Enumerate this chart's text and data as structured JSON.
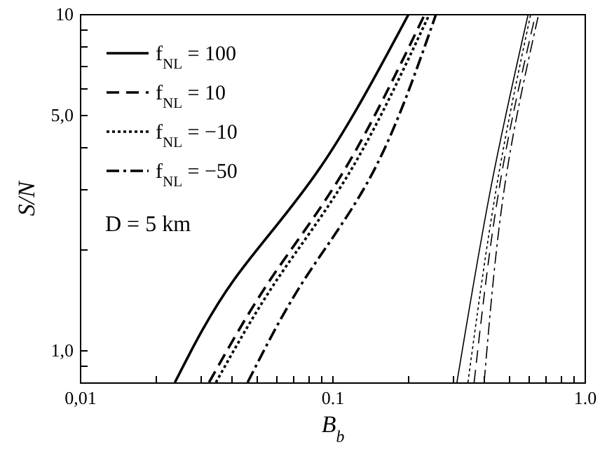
{
  "chart_data": {
    "type": "line",
    "xlabel": "B$_{b}$",
    "ylabel": "S/N",
    "log": "xy",
    "grid": false,
    "legend": "top left",
    "xlim": [
      0.01,
      1
    ],
    "ylim": [
      0.8,
      10
    ],
    "xticks": [
      {
        "value": 0.01,
        "label": "0,01"
      },
      {
        "value": 0.02,
        "label": null
      },
      {
        "value": 0.03,
        "label": null
      },
      {
        "value": 0.04,
        "label": null
      },
      {
        "value": 0.05,
        "label": null
      },
      {
        "value": 0.06,
        "label": null
      },
      {
        "value": 0.07,
        "label": null
      },
      {
        "value": 0.08,
        "label": null
      },
      {
        "value": 0.09,
        "label": null
      },
      0.1,
      {
        "value": 0.2,
        "label": null
      },
      {
        "value": 0.3,
        "label": null
      },
      {
        "value": 0.4,
        "label": null
      },
      {
        "value": 0.5,
        "label": null
      },
      {
        "value": 0.6,
        "label": null
      },
      {
        "value": 0.7,
        "label": null
      },
      {
        "value": 0.8,
        "label": null
      },
      {
        "value": 0.9,
        "label": null
      },
      {
        "value": 1,
        "label": "1.0"
      }
    ],
    "yticks": [
      {
        "value": 0.9,
        "label": null
      },
      {
        "value": 1,
        "label": "1,0"
      },
      {
        "value": 2,
        "label": null
      },
      {
        "value": 3,
        "label": null
      },
      {
        "value": 4,
        "label": null
      },
      {
        "value": 5,
        "label": "5,0"
      },
      {
        "value": 6,
        "label": null
      },
      {
        "value": 7,
        "label": null
      },
      {
        "value": 8,
        "label": null
      },
      {
        "value": 9,
        "label": null
      },
      10
    ],
    "annotations": [
      "D = 5  km"
    ],
    "series": [
      {
        "name": "f$_{NL}$ = 100",
        "color": "#000000",
        "line_style": "solid",
        "x": [
          0.0238,
          0.0409,
          0.0894,
          0.201
        ],
        "values": [
          0.8,
          1.62,
          3.48,
          10
        ]
      },
      {
        "name": "f$_{NL}$ = 10",
        "color": "#000000",
        "line_style": "dashed",
        "x": [
          0.0325,
          0.0569,
          0.113,
          0.233
        ],
        "values": [
          0.8,
          1.62,
          3.48,
          10
        ]
      },
      {
        "name": "f$_{NL}$ = −10",
        "color": "#000000",
        "line_style": "dotted",
        "x": [
          0.0346,
          0.0605,
          0.12,
          0.243
        ],
        "values": [
          0.8,
          1.62,
          3.48,
          10
        ]
      },
      {
        "name": "f$_{NL}$ = −50",
        "color": "#000000",
        "line_style": "dashdot",
        "x": [
          0.0462,
          0.0776,
          0.148,
          0.258
        ],
        "values": [
          0.8,
          1.62,
          3.48,
          10
        ]
      },
      {
        "color": "#000000",
        "line_style": "solid",
        "x": [
          0.312,
          0.426,
          0.598
        ],
        "values": [
          0.8,
          3.06,
          10
        ]
      },
      {
        "color": "#000000",
        "line_style": "dashed",
        "x": [
          0.365,
          0.46,
          0.64
        ],
        "values": [
          0.8,
          3.06,
          10
        ]
      },
      {
        "color": "#000000",
        "line_style": "dotted",
        "x": [
          0.345,
          0.448,
          0.612
        ],
        "values": [
          0.8,
          3.06,
          10
        ]
      },
      {
        "color": "#000000",
        "line_style": "dashdot",
        "x": [
          0.4,
          0.482,
          0.658
        ],
        "values": [
          0.8,
          3.06,
          10
        ]
      }
    ]
  }
}
